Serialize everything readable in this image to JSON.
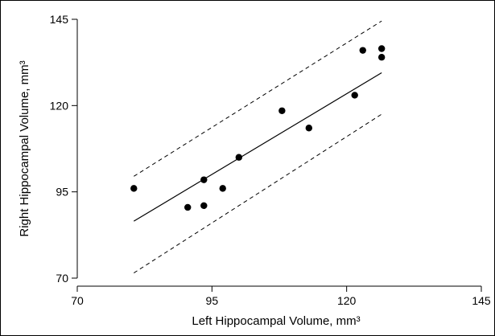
{
  "chart_data": {
    "type": "scatter",
    "xlabel": "Left Hippocampal Volume, mm³",
    "ylabel": "Right Hippocampal Volume, mm³",
    "xlim": [
      70,
      145
    ],
    "ylim": [
      70,
      145
    ],
    "xticks": [
      70,
      95,
      120,
      145
    ],
    "yticks": [
      70,
      95,
      120,
      145
    ],
    "grid": false,
    "points": [
      {
        "x": 80.5,
        "y": 96.0
      },
      {
        "x": 90.5,
        "y": 90.5
      },
      {
        "x": 93.5,
        "y": 91.0
      },
      {
        "x": 93.5,
        "y": 98.5
      },
      {
        "x": 97.0,
        "y": 96.0
      },
      {
        "x": 100.0,
        "y": 105.0
      },
      {
        "x": 108.0,
        "y": 118.5
      },
      {
        "x": 113.0,
        "y": 113.5
      },
      {
        "x": 121.5,
        "y": 123.0
      },
      {
        "x": 123.0,
        "y": 136.0
      },
      {
        "x": 126.5,
        "y": 134.0
      },
      {
        "x": 126.5,
        "y": 136.5
      }
    ],
    "fit_line": {
      "x": [
        80.5,
        126.5
      ],
      "y": [
        86.5,
        129.5
      ],
      "style": "solid"
    },
    "prediction_band": [
      {
        "name": "upper",
        "x": [
          80.5,
          126.5
        ],
        "y": [
          99.5,
          144.5
        ],
        "style": "dashed"
      },
      {
        "name": "lower",
        "x": [
          80.5,
          126.5
        ],
        "y": [
          71.5,
          117.5
        ],
        "style": "dashed"
      }
    ]
  }
}
